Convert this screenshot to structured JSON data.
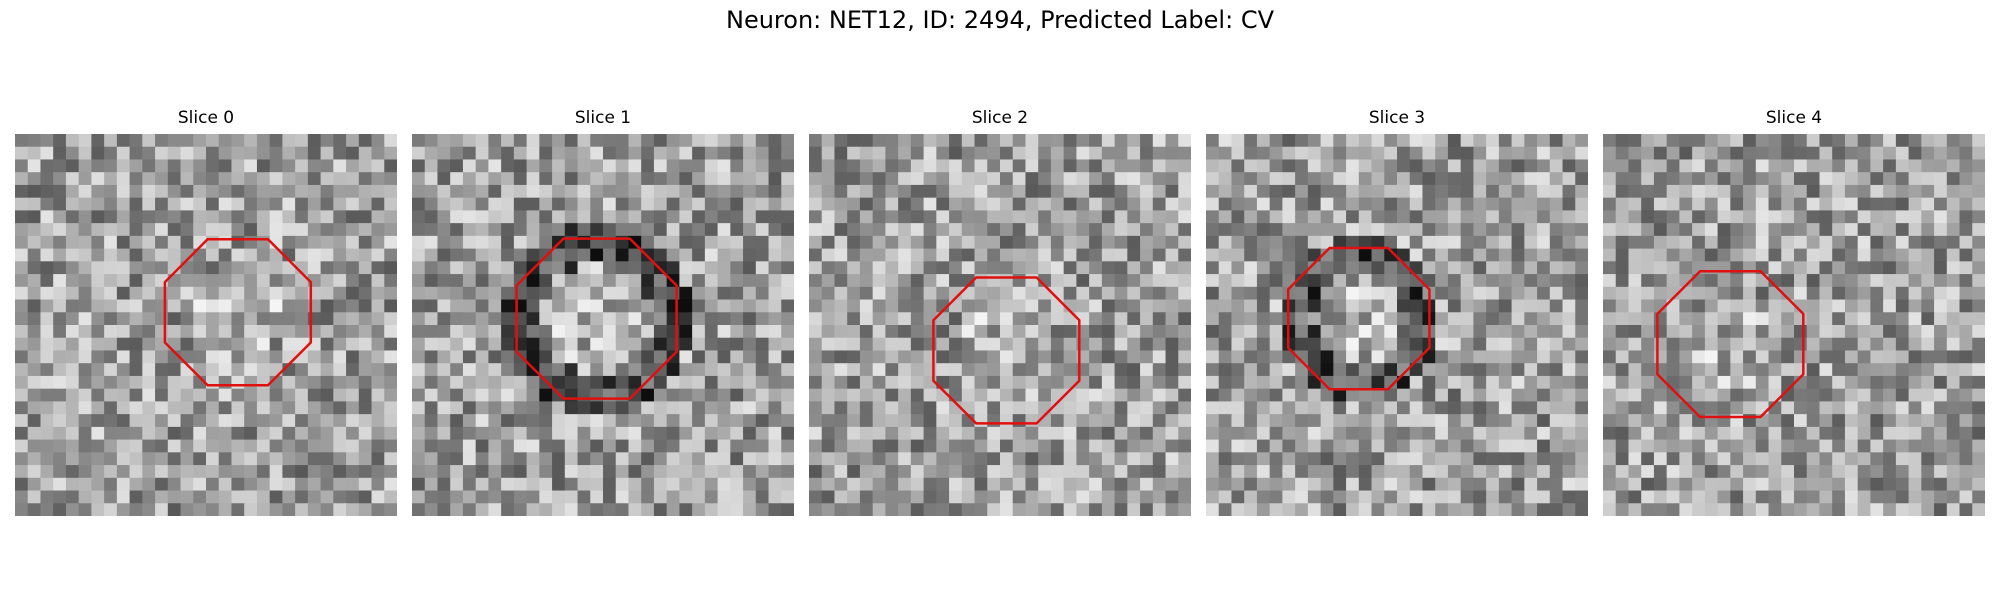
{
  "figure": {
    "title": "Neuron: NET12, ID: 2494, Predicted Label: CV"
  },
  "grid": {
    "rows": 30,
    "cols": 30,
    "colormap": "gray"
  },
  "overlay_color": "#e01010",
  "panels": [
    {
      "title": "Slice 0",
      "ring_center": [
        17.5,
        14
      ],
      "ring_radius": 6.2,
      "dark_ring": false,
      "seed": 11
    },
    {
      "title": "Slice 1",
      "ring_center": [
        14.5,
        14.5
      ],
      "ring_radius": 6.8,
      "dark_ring": true,
      "seed": 23
    },
    {
      "title": "Slice 2",
      "ring_center": [
        15.5,
        17
      ],
      "ring_radius": 6.2,
      "dark_ring": false,
      "seed": 37
    },
    {
      "title": "Slice 3",
      "ring_center": [
        12,
        14.5
      ],
      "ring_radius": 6.0,
      "dark_ring": true,
      "seed": 41
    },
    {
      "title": "Slice 4",
      "ring_center": [
        10,
        16.5
      ],
      "ring_radius": 6.2,
      "dark_ring": false,
      "seed": 53
    }
  ]
}
